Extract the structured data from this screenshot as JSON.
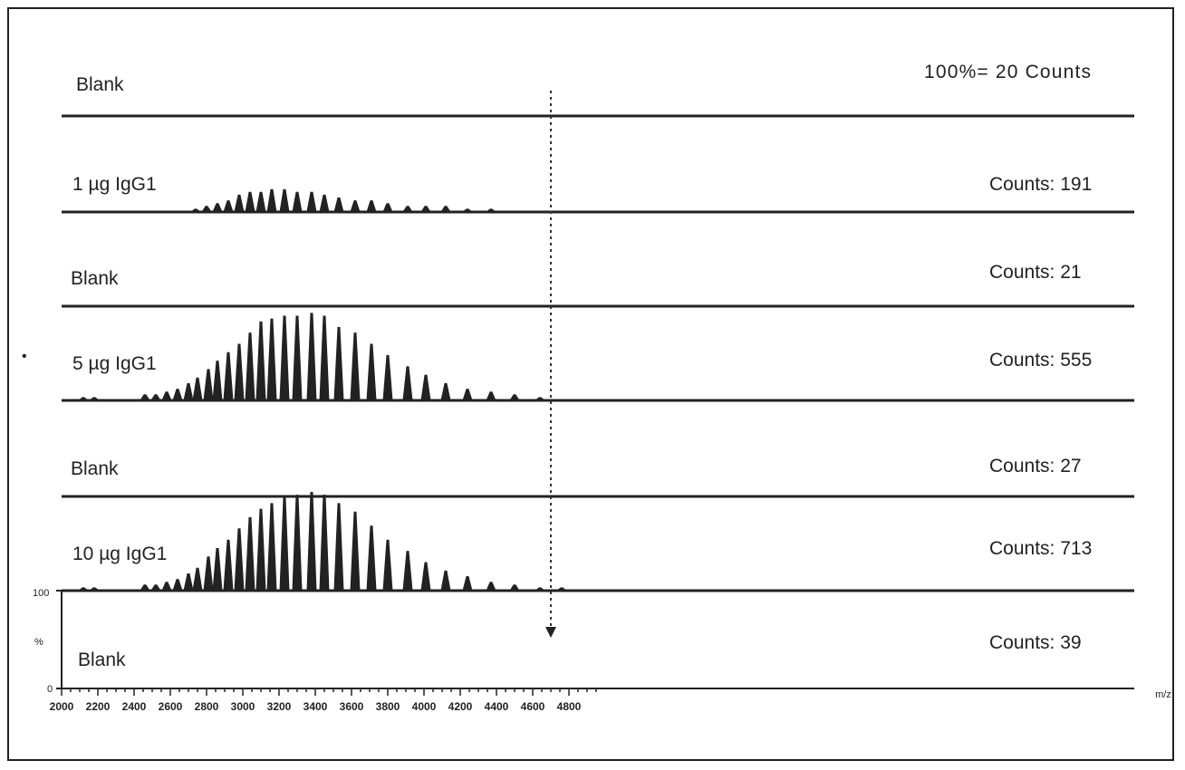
{
  "chart_data": {
    "type": "line",
    "title": "",
    "xlabel": "m/z",
    "ylabel": "%",
    "xlim": [
      2000,
      4980
    ],
    "x_ticks": [
      "2000",
      "2200",
      "2400",
      "2600",
      "2800",
      "3000",
      "3200",
      "3400",
      "3600",
      "3800",
      "4000",
      "4200",
      "4400",
      "4600",
      "4800"
    ],
    "y_ticks": [
      "100",
      "0"
    ],
    "scale_note": "100%= 20 Counts",
    "grid": false,
    "traces": [
      {
        "name": "Blank",
        "counts_label": "",
        "peaks": []
      },
      {
        "name": "1 µg IgG1",
        "counts_label": "Counts: 191",
        "peaks": [
          [
            2740,
            0.5
          ],
          [
            2800,
            1
          ],
          [
            2860,
            1.5
          ],
          [
            2920,
            2
          ],
          [
            2980,
            3
          ],
          [
            3040,
            3.5
          ],
          [
            3100,
            3.5
          ],
          [
            3160,
            4
          ],
          [
            3230,
            4
          ],
          [
            3300,
            3.5
          ],
          [
            3380,
            3.5
          ],
          [
            3450,
            3
          ],
          [
            3530,
            2.5
          ],
          [
            3620,
            2
          ],
          [
            3710,
            2
          ],
          [
            3800,
            1.5
          ],
          [
            3910,
            1
          ],
          [
            4010,
            1
          ],
          [
            4120,
            1
          ],
          [
            4240,
            0.5
          ],
          [
            4370,
            0.5
          ]
        ]
      },
      {
        "name": "Blank",
        "counts_label": "Counts: 21",
        "peaks": []
      },
      {
        "name": "5 µg IgG1",
        "counts_label": "Counts: 555",
        "peaks": [
          [
            2120,
            0.5
          ],
          [
            2180,
            0.5
          ],
          [
            2460,
            1
          ],
          [
            2520,
            1
          ],
          [
            2580,
            1.5
          ],
          [
            2640,
            2
          ],
          [
            2700,
            3
          ],
          [
            2750,
            4
          ],
          [
            2810,
            5.5
          ],
          [
            2860,
            7
          ],
          [
            2920,
            8.5
          ],
          [
            2980,
            10
          ],
          [
            3040,
            12
          ],
          [
            3100,
            14
          ],
          [
            3160,
            14.5
          ],
          [
            3230,
            15
          ],
          [
            3300,
            15
          ],
          [
            3380,
            15.5
          ],
          [
            3450,
            15
          ],
          [
            3530,
            13
          ],
          [
            3620,
            12
          ],
          [
            3710,
            10
          ],
          [
            3800,
            8
          ],
          [
            3910,
            6
          ],
          [
            4010,
            4.5
          ],
          [
            4120,
            3
          ],
          [
            4240,
            2
          ],
          [
            4370,
            1.5
          ],
          [
            4500,
            1
          ],
          [
            4640,
            0.5
          ]
        ]
      },
      {
        "name": "Blank",
        "counts_label": "Counts: 27",
        "peaks": []
      },
      {
        "name": "10 µg IgG1",
        "counts_label": "Counts: 713",
        "peaks": [
          [
            2120,
            0.5
          ],
          [
            2180,
            0.5
          ],
          [
            2460,
            1
          ],
          [
            2520,
            1
          ],
          [
            2580,
            1.5
          ],
          [
            2640,
            2
          ],
          [
            2700,
            3
          ],
          [
            2750,
            4
          ],
          [
            2810,
            6
          ],
          [
            2860,
            7.5
          ],
          [
            2920,
            9
          ],
          [
            2980,
            11
          ],
          [
            3040,
            13
          ],
          [
            3100,
            14.5
          ],
          [
            3160,
            15.5
          ],
          [
            3230,
            16.5
          ],
          [
            3300,
            17
          ],
          [
            3380,
            17.5
          ],
          [
            3450,
            17
          ],
          [
            3530,
            15.5
          ],
          [
            3620,
            14
          ],
          [
            3710,
            11.5
          ],
          [
            3800,
            9
          ],
          [
            3910,
            7
          ],
          [
            4010,
            5
          ],
          [
            4120,
            3.5
          ],
          [
            4240,
            2.5
          ],
          [
            4370,
            1.5
          ],
          [
            4500,
            1
          ],
          [
            4640,
            0.5
          ],
          [
            4760,
            0.5
          ]
        ]
      },
      {
        "name": "Blank",
        "counts_label": "Counts: 39",
        "peaks": []
      }
    ],
    "marker_mz": 4700
  },
  "colors": {
    "trace": "#222222",
    "background": "#ffffff"
  },
  "stray_mark": "•"
}
